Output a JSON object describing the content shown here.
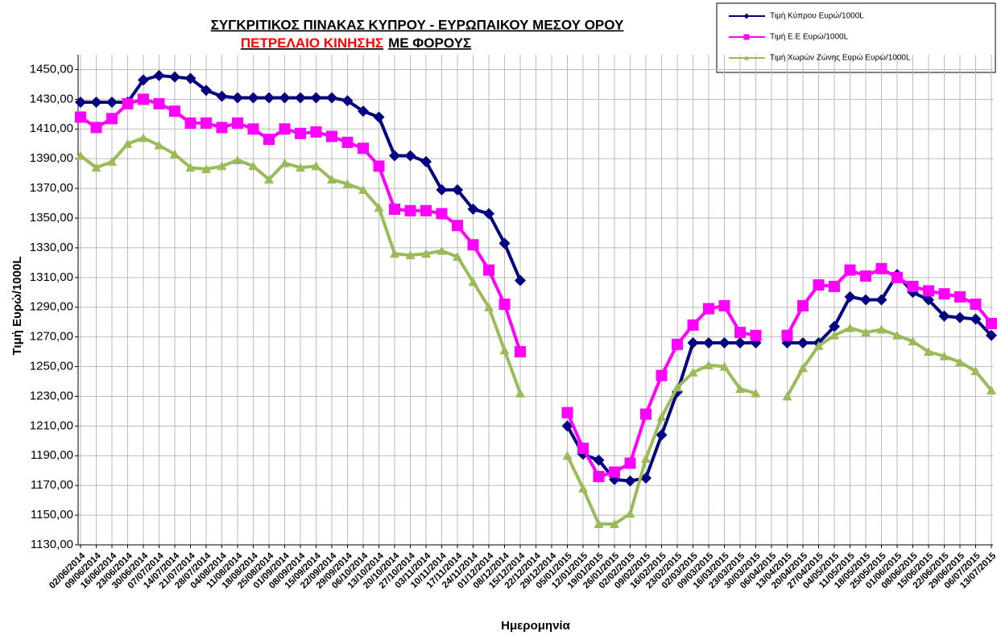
{
  "chart_data": {
    "type": "line",
    "title": "ΣΥΓΚΡΙΤΙΚΟΣ ΠΙΝΑΚΑΣ ΚΥΠΡΟΥ - ΕΥΡΩΠΑΙΚΟΥ ΜΕΣΟΥ ΟΡΟΥ",
    "subtitle": [
      "ΠΕΤΡΕΛΑΙΟ ΚΙΝΗΣΗΣ",
      "ΜΕ ΦΟΡΟΥΣ"
    ],
    "subtitle_colors": [
      "#ff0000",
      "#000000"
    ],
    "y_label": "Τιμή Ευρώ/1000L",
    "x_label": "Ημερομηνία",
    "categories": [
      "02/06/2014",
      "09/06/2014",
      "16/06/2014",
      "23/06/2014",
      "30/06/2014",
      "07/07/2014",
      "14/07/2014",
      "21/07/2014",
      "28/07/2014",
      "04/08/2014",
      "11/08/2014",
      "18/08/2014",
      "25/08/2014",
      "01/09/2014",
      "08/09/2014",
      "15/09/2014",
      "22/09/2014",
      "29/09/2014",
      "06/10/2014",
      "13/10/2014",
      "20/10/2014",
      "27/10/2014",
      "03/11/2014",
      "10/11/2014",
      "17/11/2014",
      "24/11/2014",
      "01/12/2014",
      "08/12/2014",
      "15/12/2014",
      "22/12/2014",
      "29/12/2014",
      "05/01/2015",
      "12/01/2015",
      "19/01/2015",
      "26/01/2015",
      "02/02/2015",
      "09/02/2015",
      "16/02/2015",
      "23/02/2015",
      "02/03/2015",
      "09/03/2015",
      "16/03/2015",
      "23/03/2015",
      "30/03/2015",
      "06/04/2015",
      "13/04/2015",
      "20/04/2015",
      "27/04/2015",
      "04/05/2015",
      "11/05/2015",
      "18/05/2015",
      "25/05/2015",
      "01/06/2015",
      "08/06/2015",
      "15/06/2015",
      "22/06/2015",
      "29/06/2015",
      "06/07/2015",
      "13/07/2015"
    ],
    "series": [
      {
        "name": "Τιμή Κύπρου Ευρώ/1000L",
        "color": "#000080",
        "marker": "diamond",
        "values": [
          1428,
          1428,
          1428,
          1428,
          1443,
          1446,
          1445,
          1444,
          1436,
          1432,
          1431,
          1431,
          1431,
          1431,
          1431,
          1431,
          1431,
          1429,
          1422,
          1418,
          1392,
          1392,
          1388,
          1369,
          1369,
          1356,
          1353,
          1333,
          1308,
          null,
          null,
          1210,
          1191,
          1187,
          1174,
          1173,
          1175,
          1204,
          1233,
          1266,
          1266,
          1266,
          1266,
          1266,
          null,
          1266,
          1266,
          1266,
          1277,
          1297,
          1295,
          1295,
          1312,
          1300,
          1295,
          1284,
          1283,
          1282,
          1271
        ]
      },
      {
        "name": "Τιμή Ε.Ε Ευρώ/1000L",
        "color": "#ff00ff",
        "marker": "square",
        "values": [
          1418,
          1411,
          1417,
          1427,
          1430,
          1427,
          1422,
          1414,
          1414,
          1411,
          1414,
          1410,
          1403,
          1410,
          1407,
          1408,
          1405,
          1401,
          1397,
          1385,
          1356,
          1355,
          1355,
          1353,
          1345,
          1332,
          1315,
          1292,
          1260,
          null,
          null,
          1219,
          1195,
          1176,
          1179,
          1185,
          1218,
          1244,
          1265,
          1278,
          1289,
          1291,
          1273,
          1271,
          null,
          1271,
          1291,
          1305,
          1304,
          1315,
          1311,
          1316,
          1310,
          1304,
          1301,
          1299,
          1297,
          1292,
          1279
        ]
      },
      {
        "name": "Τιμή Χωρών  Ζώνης Ευρώ Ευρώ/1000L",
        "color": "#9bbb59",
        "marker": "triangle",
        "values": [
          1392,
          1384,
          1388,
          1400,
          1404,
          1399,
          1393,
          1384,
          1383,
          1385,
          1389,
          1385,
          1376,
          1387,
          1384,
          1385,
          1376,
          1373,
          1369,
          1357,
          1326,
          1325,
          1326,
          1328,
          1324,
          1307,
          1290,
          1261,
          1232,
          null,
          null,
          1190,
          1168,
          1144,
          1144,
          1151,
          1188,
          1216,
          1236,
          1246,
          1251,
          1250,
          1235,
          1232,
          null,
          1230,
          1249,
          1264,
          1271,
          1276,
          1273,
          1275,
          1271,
          1267,
          1260,
          1257,
          1253,
          1247,
          1234
        ]
      }
    ],
    "ylim": [
      1130,
      1460
    ],
    "yticks": [
      {
        "value": 1130,
        "label": "1130,00"
      },
      {
        "value": 1150,
        "label": "1150,00"
      },
      {
        "value": 1170,
        "label": "1170,00"
      },
      {
        "value": 1190,
        "label": "1190,00"
      },
      {
        "value": 1210,
        "label": "1210,00"
      },
      {
        "value": 1230,
        "label": "1230,00"
      },
      {
        "value": 1250,
        "label": "1250,00"
      },
      {
        "value": 1270,
        "label": "1270,00"
      },
      {
        "value": 1290,
        "label": "1290,00"
      },
      {
        "value": 1310,
        "label": "1310,00"
      },
      {
        "value": 1330,
        "label": "1330,00"
      },
      {
        "value": 1350,
        "label": "1350,00"
      },
      {
        "value": 1370,
        "label": "1370,00"
      },
      {
        "value": 1390,
        "label": "1390,00"
      },
      {
        "value": 1410,
        "label": "1410,00"
      },
      {
        "value": 1430,
        "label": "1430,00"
      },
      {
        "value": 1450,
        "label": "1450,00"
      }
    ],
    "grid": true,
    "legend": "top-right"
  }
}
